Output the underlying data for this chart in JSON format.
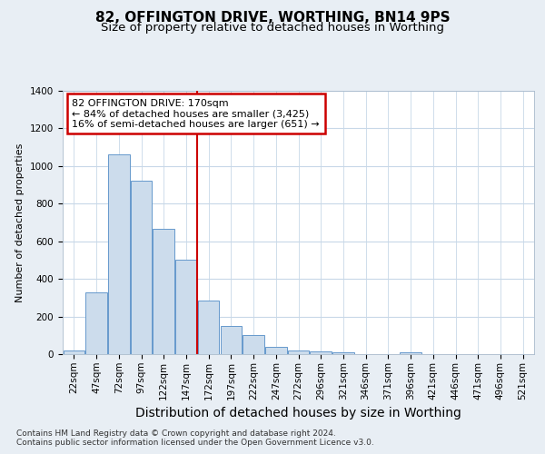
{
  "title": "82, OFFINGTON DRIVE, WORTHING, BN14 9PS",
  "subtitle": "Size of property relative to detached houses in Worthing",
  "xlabel": "Distribution of detached houses by size in Worthing",
  "ylabel": "Number of detached properties",
  "footer1": "Contains HM Land Registry data © Crown copyright and database right 2024.",
  "footer2": "Contains public sector information licensed under the Open Government Licence v3.0.",
  "bins": [
    "22sqm",
    "47sqm",
    "72sqm",
    "97sqm",
    "122sqm",
    "147sqm",
    "172sqm",
    "197sqm",
    "222sqm",
    "247sqm",
    "272sqm",
    "296sqm",
    "321sqm",
    "346sqm",
    "371sqm",
    "396sqm",
    "421sqm",
    "446sqm",
    "471sqm",
    "496sqm",
    "521sqm"
  ],
  "values": [
    20,
    330,
    1060,
    920,
    665,
    500,
    285,
    148,
    100,
    40,
    20,
    15,
    10,
    0,
    0,
    10,
    0,
    0,
    0,
    0,
    0
  ],
  "bar_color": "#ccdcec",
  "bar_edge_color": "#6699cc",
  "highlight_bar_idx": 6,
  "highlight_line_color": "#cc0000",
  "annotation_text": "82 OFFINGTON DRIVE: 170sqm\n← 84% of detached houses are smaller (3,425)\n16% of semi-detached houses are larger (651) →",
  "annotation_box_color": "white",
  "annotation_box_edge": "#cc0000",
  "ylim": [
    0,
    1400
  ],
  "yticks": [
    0,
    200,
    400,
    600,
    800,
    1000,
    1200,
    1400
  ],
  "bg_color": "#e8eef4",
  "plot_bg": "#ffffff",
  "grid_color": "#c8d8e8",
  "title_fontsize": 11,
  "subtitle_fontsize": 9.5,
  "xlabel_fontsize": 10,
  "ylabel_fontsize": 8,
  "tick_fontsize": 7.5,
  "footer_fontsize": 6.5
}
